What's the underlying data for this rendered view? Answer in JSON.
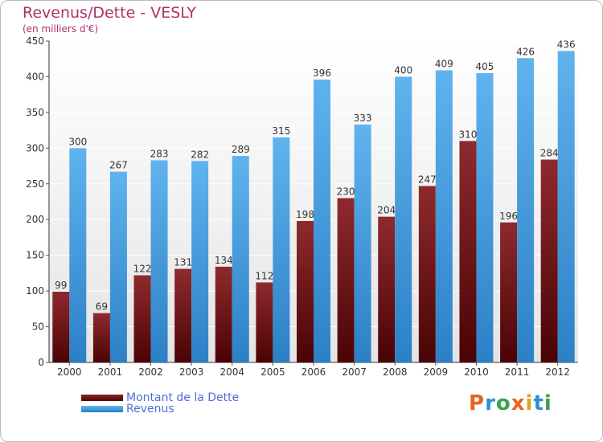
{
  "chart_data": {
    "type": "bar",
    "title": "Revenus/Dette - VESLY",
    "subtitle": "(en milliers d'€)",
    "categories": [
      "2000",
      "2001",
      "2002",
      "2003",
      "2004",
      "2005",
      "2006",
      "2007",
      "2008",
      "2009",
      "2010",
      "2011",
      "2012"
    ],
    "series": [
      {
        "name": "Montant de la Dette",
        "color": "#7a1518",
        "values": [
          99,
          69,
          122,
          131,
          134,
          112,
          198,
          230,
          204,
          247,
          310,
          196,
          284
        ]
      },
      {
        "name": "Revenus",
        "color": "#3d9be0",
        "values": [
          300,
          267,
          283,
          282,
          289,
          315,
          396,
          333,
          400,
          409,
          405,
          426,
          436
        ]
      }
    ],
    "ylim": [
      0,
      450
    ],
    "yticks": [
      0,
      50,
      100,
      150,
      200,
      250,
      300,
      350,
      400,
      450
    ],
    "grid": true,
    "legend": "bottom-left"
  },
  "logo": {
    "letters": [
      "P",
      "r",
      "o",
      "x",
      "i",
      "t",
      "i"
    ],
    "colors": [
      "#e8641e",
      "#2f8fd6",
      "#3aa34a",
      "#e8641e",
      "#d8a81e",
      "#2f8fd6",
      "#3aa34a"
    ]
  }
}
